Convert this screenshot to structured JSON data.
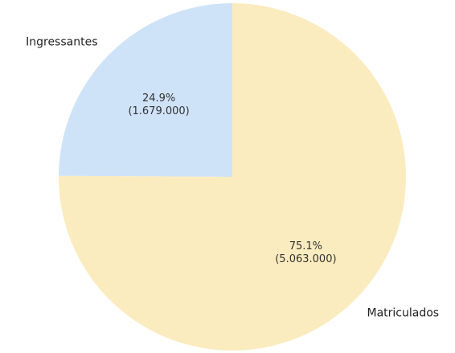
{
  "chart_data": {
    "type": "pie",
    "title": "",
    "slices": [
      {
        "label": "Ingressantes",
        "value": 1679000,
        "percent_text": "24.9%",
        "value_text": "(1.679.000)",
        "color": "#cfe3f8"
      },
      {
        "label": "Matriculados",
        "value": 5063000,
        "percent_text": "75.1%",
        "value_text": "(5.063.000)",
        "color": "#fbecbf"
      }
    ],
    "start_angle": "12 o'clock",
    "direction": "counterclockwise",
    "legend": "none"
  }
}
